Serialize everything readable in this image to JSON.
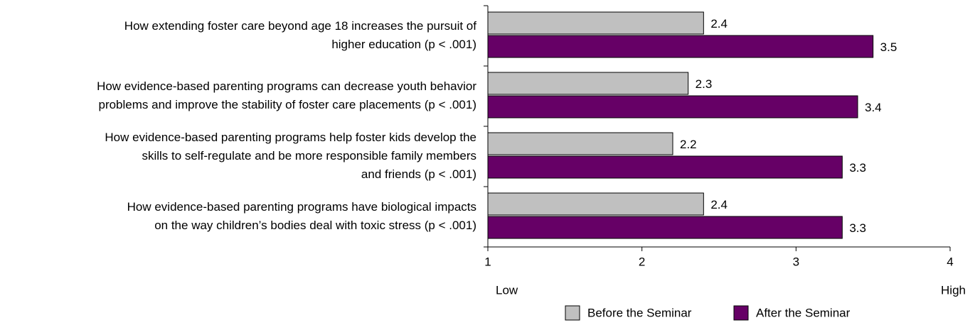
{
  "chart_data": {
    "type": "hbar",
    "categories": [
      [
        "How extending foster care beyond age 18 increases the pursuit of",
        "higher education (p < .001)"
      ],
      [
        "How evidence-based parenting programs can decrease youth behavior",
        "problems and improve the stability of foster care placements (p < .001)"
      ],
      [
        "How evidence-based parenting programs help foster kids develop the",
        "skills to self-regulate and be more responsible family members",
        "and friends (p < .001)"
      ],
      [
        "How evidence-based parenting programs have biological impacts",
        "on the way children’s bodies deal with toxic stress (p < .001)"
      ]
    ],
    "series": [
      {
        "name": "Before the Seminar",
        "color": "#c0c0c0",
        "values": [
          2.4,
          2.3,
          2.2,
          2.4
        ]
      },
      {
        "name": "After the Seminar",
        "color": "#660066",
        "values": [
          3.5,
          3.4,
          3.3,
          3.3
        ]
      }
    ],
    "xlim": [
      1,
      4
    ],
    "xticks": [
      1,
      2,
      3,
      4
    ],
    "axis_end_labels": [
      "Low",
      "High"
    ],
    "legend": "bottom"
  }
}
